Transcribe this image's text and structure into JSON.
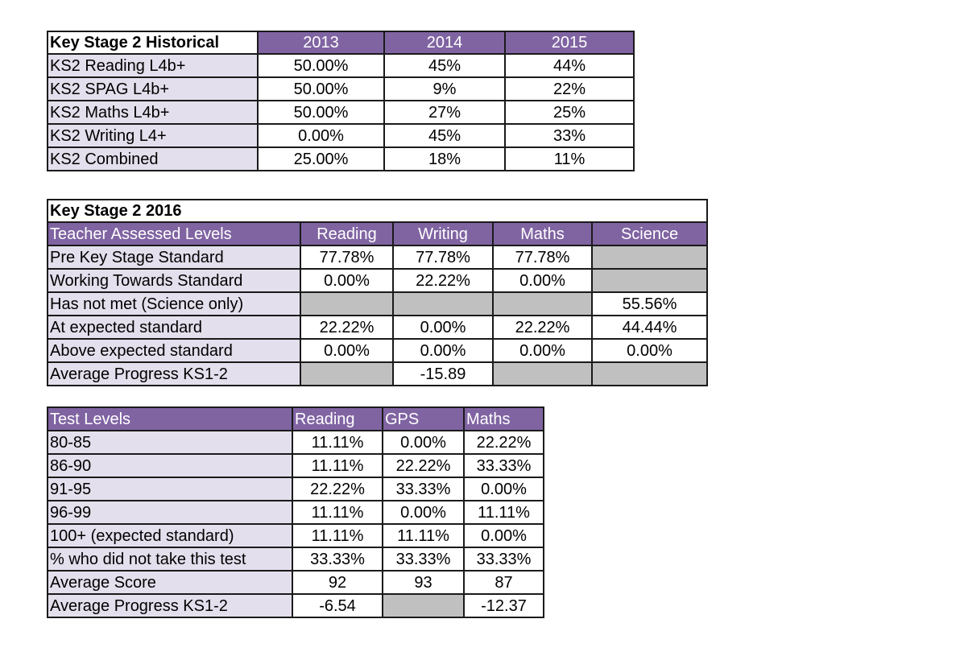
{
  "colors": {
    "header_purple": "#8064a2",
    "label_lavender": "#e4dfec",
    "empty_grey": "#c0c0c0"
  },
  "historical": {
    "title": "Key Stage 2 Historical",
    "columns": [
      "2013",
      "2014",
      "2015"
    ],
    "rows": [
      {
        "label": "KS2 Reading L4b+",
        "values": [
          "50.00%",
          "45%",
          "44%"
        ]
      },
      {
        "label": "KS2 SPAG L4b+",
        "values": [
          "50.00%",
          "9%",
          "22%"
        ]
      },
      {
        "label": "KS2 Maths L4b+",
        "values": [
          "50.00%",
          "27%",
          "25%"
        ]
      },
      {
        "label": "KS2 Writing L4+",
        "values": [
          "0.00%",
          "45%",
          "33%"
        ]
      },
      {
        "label": "KS2 Combined",
        "values": [
          "25.00%",
          "18%",
          "11%"
        ]
      }
    ]
  },
  "ks2_2016": {
    "title": "Key Stage 2 2016",
    "header_label": "Teacher Assessed Levels",
    "columns": [
      "Reading",
      "Writing",
      "Maths",
      "Science"
    ],
    "rows": [
      {
        "label": "Pre Key Stage Standard",
        "values": [
          "77.78%",
          "77.78%",
          "77.78%",
          null
        ]
      },
      {
        "label": "Working Towards Standard",
        "values": [
          "0.00%",
          "22.22%",
          "0.00%",
          null
        ]
      },
      {
        "label": "Has not met (Science only)",
        "values": [
          null,
          null,
          null,
          "55.56%"
        ]
      },
      {
        "label": "At expected standard",
        "values": [
          "22.22%",
          "0.00%",
          "22.22%",
          "44.44%"
        ]
      },
      {
        "label": "Above expected standard",
        "values": [
          "0.00%",
          "0.00%",
          "0.00%",
          "0.00%"
        ]
      },
      {
        "label": "Average Progress KS1-2",
        "values": [
          null,
          "-15.89",
          null,
          null
        ]
      }
    ]
  },
  "test_levels": {
    "header_label": "Test Levels",
    "columns": [
      "Reading",
      "GPS",
      "Maths"
    ],
    "rows": [
      {
        "label": "80-85",
        "values": [
          "11.11%",
          "0.00%",
          "22.22%"
        ]
      },
      {
        "label": "86-90",
        "values": [
          "11.11%",
          "22.22%",
          "33.33%"
        ]
      },
      {
        "label": "91-95",
        "values": [
          "22.22%",
          "33.33%",
          "0.00%"
        ]
      },
      {
        "label": "96-99",
        "values": [
          "11.11%",
          "0.00%",
          "11.11%"
        ]
      },
      {
        "label": "100+ (expected standard)",
        "values": [
          "11.11%",
          "11.11%",
          "0.00%"
        ]
      },
      {
        "label": "% who did not take this test",
        "values": [
          "33.33%",
          "33.33%",
          "33.33%"
        ]
      },
      {
        "label": "Average Score",
        "values": [
          "92",
          "93",
          "87"
        ]
      },
      {
        "label": "Average Progress KS1-2",
        "values": [
          "-6.54",
          null,
          "-12.37"
        ]
      }
    ]
  }
}
